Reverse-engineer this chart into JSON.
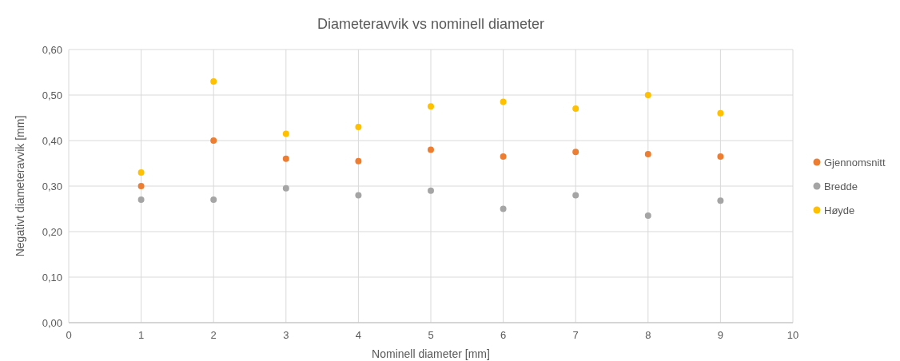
{
  "chart_data": {
    "type": "scatter",
    "title": "Diameteravvik vs nominell diameter",
    "xlabel": "Nominell diameter [mm]",
    "ylabel": "Negativt diameteravvik [mm]",
    "x": [
      1,
      2,
      3,
      4,
      5,
      6,
      7,
      8,
      9
    ],
    "series": [
      {
        "name": "Gjennomsnitt",
        "color": "#ed7d31",
        "values": [
          0.3,
          0.4,
          0.36,
          0.355,
          0.38,
          0.365,
          0.375,
          0.37,
          0.365
        ]
      },
      {
        "name": "Bredde",
        "color": "#a5a5a5",
        "values": [
          0.27,
          0.27,
          0.295,
          0.28,
          0.29,
          0.25,
          0.28,
          0.235,
          0.268
        ]
      },
      {
        "name": "Høyde",
        "color": "#ffc000",
        "values": [
          0.33,
          0.53,
          0.415,
          0.43,
          0.475,
          0.485,
          0.47,
          0.5,
          0.46
        ]
      }
    ],
    "xlim": [
      0,
      10
    ],
    "xticks": [
      0,
      1,
      2,
      3,
      4,
      5,
      6,
      7,
      8,
      9,
      10
    ],
    "ylim": [
      0,
      0.6
    ],
    "yticks": [
      {
        "value": 0,
        "label": "0,00"
      },
      {
        "value": 0.1,
        "label": "0,10"
      },
      {
        "value": 0.2,
        "label": "0,20"
      },
      {
        "value": 0.3,
        "label": "0,30"
      },
      {
        "value": 0.4,
        "label": "0,40"
      },
      {
        "value": 0.5,
        "label": "0,50"
      },
      {
        "value": 0.6,
        "label": "0,60"
      }
    ],
    "grid": true,
    "legend": "right",
    "marker": "circle"
  }
}
